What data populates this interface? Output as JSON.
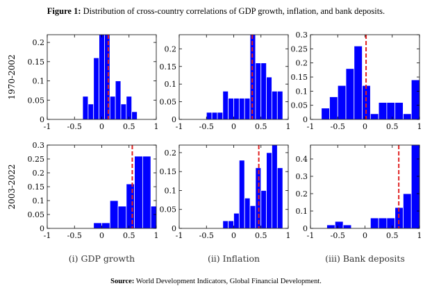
{
  "figure": {
    "title_bold": "Figure 1:",
    "title_text": " Distribution of cross-country correlations of GDP growth, inflation, and bank deposits.",
    "source_bold": "Source:",
    "source_text": " World Development Indicators, Global Financial Development.",
    "row_labels": [
      "1970-2002",
      "2003-2022"
    ],
    "column_captions": [
      "(i) GDP growth",
      "(ii) Inflation",
      "(iii) Bank deposits"
    ],
    "colors": {
      "bar": "#0000ff",
      "bar_edge": "#ffffff",
      "median_line": "#e02020"
    }
  },
  "chart_data": [
    {
      "type": "bar",
      "row": "1970-2002",
      "column": "(i) GDP growth",
      "bins": [
        [
          -0.35,
          -0.25
        ],
        [
          -0.25,
          -0.15
        ],
        [
          -0.15,
          -0.05
        ],
        [
          -0.05,
          0.05
        ],
        [
          0.05,
          0.15
        ],
        [
          0.15,
          0.25
        ],
        [
          0.25,
          0.35
        ],
        [
          0.35,
          0.45
        ],
        [
          0.45,
          0.55
        ],
        [
          0.55,
          0.65
        ]
      ],
      "values": [
        0.06,
        0.04,
        0.16,
        0.22,
        0.22,
        0.06,
        0.1,
        0.04,
        0.06,
        0.02
      ],
      "vline": 0.12,
      "xlim": [
        -1,
        1
      ],
      "xticks": [
        -1,
        -0.5,
        0,
        0.5,
        1
      ],
      "xtick_labels": [
        "-1",
        "-0.5",
        "0",
        "0.5",
        "1"
      ],
      "ylim": [
        0,
        0.22
      ],
      "yticks": [
        0,
        0.05,
        0.1,
        0.15,
        0.2
      ],
      "ytick_labels": [
        "0",
        "0.05",
        "0.1",
        "0.15",
        "0.2"
      ]
    },
    {
      "type": "bar",
      "row": "1970-2002",
      "column": "(ii) Inflation",
      "bins": [
        [
          -0.5,
          -0.4
        ],
        [
          -0.4,
          -0.3
        ],
        [
          -0.3,
          -0.2
        ],
        [
          -0.2,
          -0.1
        ],
        [
          -0.1,
          0.0
        ],
        [
          0.0,
          0.1
        ],
        [
          0.1,
          0.2
        ],
        [
          0.2,
          0.3
        ],
        [
          0.3,
          0.4
        ],
        [
          0.4,
          0.5
        ],
        [
          0.5,
          0.6
        ],
        [
          0.6,
          0.7
        ],
        [
          0.7,
          0.8
        ],
        [
          0.8,
          0.9
        ]
      ],
      "values": [
        0.02,
        0.02,
        0.02,
        0.08,
        0.06,
        0.06,
        0.06,
        0.06,
        0.24,
        0.16,
        0.16,
        0.12,
        0.08,
        0.08
      ],
      "vline": 0.34,
      "xlim": [
        -1,
        1
      ],
      "xticks": [
        -1,
        -0.5,
        0,
        0.5,
        1
      ],
      "xtick_labels": [
        "-1",
        "-0.5",
        "0",
        "0.5",
        "1"
      ],
      "ylim": [
        0,
        0.24
      ],
      "yticks": [
        0,
        0.05,
        0.1,
        0.15,
        0.2
      ],
      "ytick_labels": [
        "0",
        "0.05",
        "0.1",
        "0.15",
        "0.2"
      ]
    },
    {
      "type": "bar",
      "row": "1970-2002",
      "column": "(iii) Bank deposits",
      "bins": [
        [
          -0.8,
          -0.65
        ],
        [
          -0.65,
          -0.5
        ],
        [
          -0.5,
          -0.35
        ],
        [
          -0.35,
          -0.2
        ],
        [
          -0.2,
          -0.05
        ],
        [
          -0.05,
          0.1
        ],
        [
          0.1,
          0.25
        ],
        [
          0.25,
          0.4
        ],
        [
          0.4,
          0.55
        ],
        [
          0.55,
          0.7
        ],
        [
          0.7,
          0.85
        ],
        [
          0.85,
          1.0
        ]
      ],
      "values": [
        0.04,
        0.08,
        0.12,
        0.18,
        0.26,
        0.12,
        0.02,
        0.06,
        0.06,
        0.06,
        0.02,
        0.14
      ],
      "vline": 0.02,
      "xlim": [
        -1,
        1
      ],
      "xticks": [
        -1,
        -0.5,
        0,
        0.5,
        1
      ],
      "xtick_labels": [
        "-1",
        "-0.5",
        "0",
        "0.5",
        "1"
      ],
      "ylim": [
        0,
        0.3
      ],
      "yticks": [
        0,
        0.05,
        0.1,
        0.15,
        0.2,
        0.25,
        0.3
      ],
      "ytick_labels": [
        "0",
        "0.05",
        "0.1",
        "0.15",
        "0.2",
        "0.25",
        "0.3"
      ]
    },
    {
      "type": "bar",
      "row": "2003-2022",
      "column": "(i) GDP growth",
      "bins": [
        [
          -0.15,
          0.0
        ],
        [
          0.0,
          0.15
        ],
        [
          0.15,
          0.3
        ],
        [
          0.3,
          0.45
        ],
        [
          0.45,
          0.6
        ],
        [
          0.6,
          0.75
        ],
        [
          0.75,
          0.9
        ],
        [
          0.9,
          1.0
        ]
      ],
      "values": [
        0.02,
        0.02,
        0.1,
        0.08,
        0.16,
        0.26,
        0.26,
        0.08
      ],
      "vline": 0.56,
      "xlim": [
        -1,
        1
      ],
      "xticks": [
        -1,
        -0.5,
        0,
        0.5,
        1
      ],
      "xtick_labels": [
        "-1",
        "-0.5",
        "0",
        "0.5",
        "1"
      ],
      "ylim": [
        0,
        0.3
      ],
      "yticks": [
        0,
        0.05,
        0.1,
        0.15,
        0.2,
        0.25,
        0.3
      ],
      "ytick_labels": [
        "0",
        "0.05",
        "0.1",
        "0.15",
        "0.2",
        "0.25",
        "0.3"
      ]
    },
    {
      "type": "bar",
      "row": "2003-2022",
      "column": "(ii) Inflation",
      "bins": [
        [
          -0.2,
          -0.1
        ],
        [
          -0.1,
          0.0
        ],
        [
          0.0,
          0.1
        ],
        [
          0.1,
          0.2
        ],
        [
          0.2,
          0.3
        ],
        [
          0.3,
          0.4
        ],
        [
          0.4,
          0.5
        ],
        [
          0.5,
          0.6
        ],
        [
          0.6,
          0.7
        ],
        [
          0.7,
          0.8
        ],
        [
          0.8,
          0.9
        ]
      ],
      "values": [
        0.02,
        0.02,
        0.04,
        0.18,
        0.08,
        0.06,
        0.16,
        0.1,
        0.2,
        0.22,
        0.16
      ],
      "vline": 0.46,
      "xlim": [
        -1,
        1
      ],
      "xticks": [
        -1,
        -0.5,
        0,
        0.5,
        1
      ],
      "xtick_labels": [
        "-1",
        "-0.5",
        "0",
        "0.5",
        "1"
      ],
      "ylim": [
        0,
        0.22
      ],
      "yticks": [
        0,
        0.05,
        0.1,
        0.15,
        0.2
      ],
      "ytick_labels": [
        "0",
        "0.05",
        "0.1",
        "0.15",
        "0.2"
      ]
    },
    {
      "type": "bar",
      "row": "2003-2022",
      "column": "(iii) Bank deposits",
      "bins": [
        [
          -0.7,
          -0.55
        ],
        [
          -0.55,
          -0.4
        ],
        [
          -0.4,
          -0.25
        ],
        [
          0.1,
          0.25
        ],
        [
          0.25,
          0.4
        ],
        [
          0.4,
          0.55
        ],
        [
          0.55,
          0.7
        ],
        [
          0.7,
          0.85
        ],
        [
          0.85,
          1.0
        ]
      ],
      "values": [
        0.02,
        0.04,
        0.02,
        0.06,
        0.06,
        0.06,
        0.12,
        0.2,
        0.48
      ],
      "vline": 0.62,
      "xlim": [
        -1,
        1
      ],
      "xticks": [
        -1,
        -0.5,
        0,
        0.5,
        1
      ],
      "xtick_labels": [
        "-1",
        "-0.5",
        "0",
        "0.5",
        "1"
      ],
      "ylim": [
        0,
        0.48
      ],
      "yticks": [
        0,
        0.1,
        0.2,
        0.3,
        0.4
      ],
      "ytick_labels": [
        "0",
        "0.1",
        "0.2",
        "0.3",
        "0.4"
      ]
    }
  ]
}
